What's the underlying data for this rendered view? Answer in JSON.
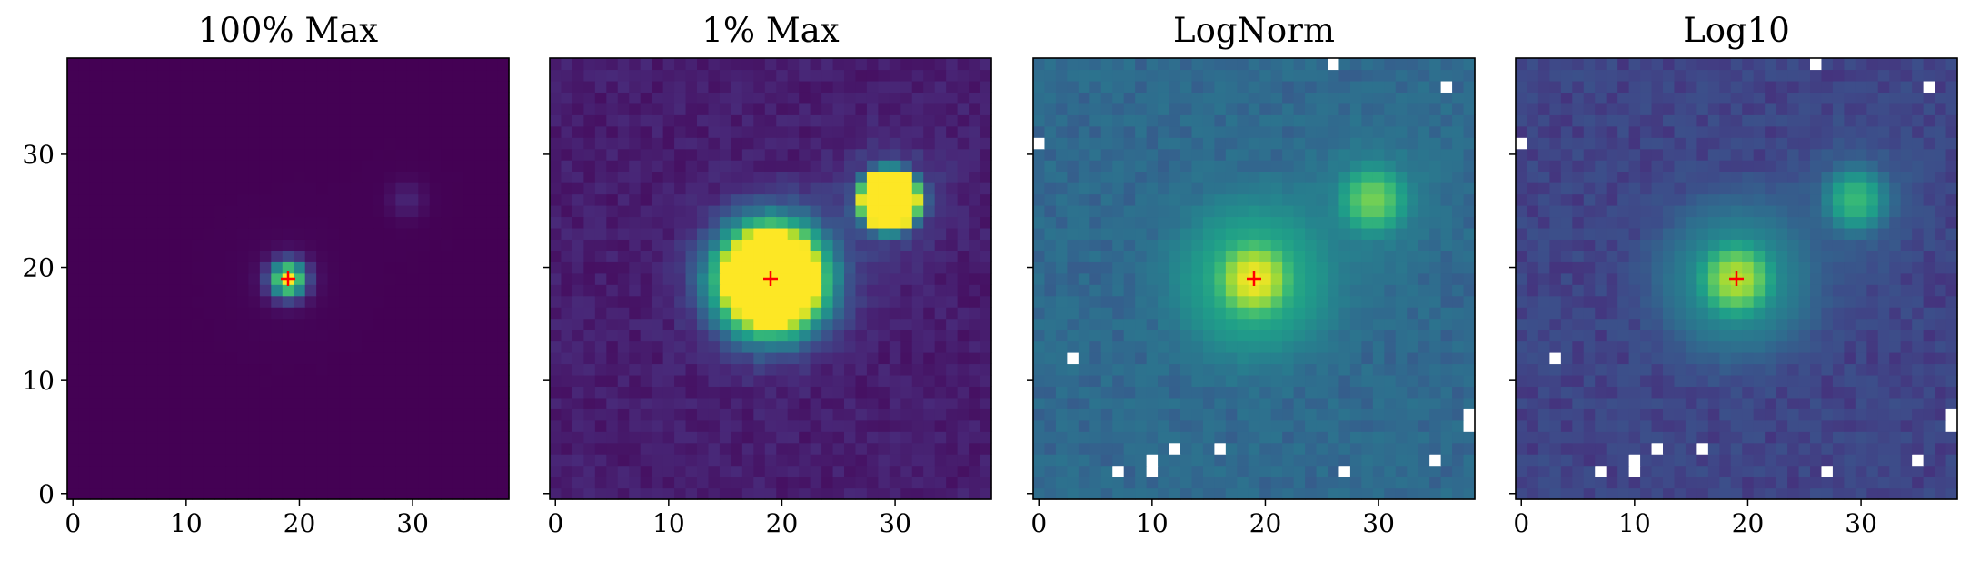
{
  "chart_data": [
    {
      "type": "heatmap",
      "title": "100% Max",
      "xlabel": "",
      "ylabel": "",
      "xlim": [
        -0.5,
        38.5
      ],
      "ylim": [
        -0.5,
        38.5
      ],
      "x_ticks": [
        "0",
        "10",
        "20",
        "30"
      ],
      "y_ticks": [
        "0",
        "10",
        "20",
        "30"
      ],
      "y_tick_labels_shown": true,
      "normalization": "linear, vmax = 100% of max",
      "colormap": "viridis",
      "grid": false,
      "marker": {
        "symbol": "+",
        "color": "#ff0000",
        "x": 19,
        "y": 19
      },
      "sources": [
        {
          "x": 19,
          "y": 19,
          "amp": 1.0
        },
        {
          "x": 29.5,
          "y": 26,
          "amp": 0.1
        }
      ],
      "masked_pixels": []
    },
    {
      "type": "heatmap",
      "title": "1% Max",
      "xlabel": "",
      "ylabel": "",
      "xlim": [
        -0.5,
        38.5
      ],
      "ylim": [
        -0.5,
        38.5
      ],
      "x_ticks": [
        "0",
        "10",
        "20",
        "30"
      ],
      "y_ticks": [],
      "y_tick_labels_shown": false,
      "normalization": "linear, vmax = 1% of max (saturated)",
      "colormap": "viridis",
      "grid": false,
      "marker": {
        "symbol": "+",
        "color": "#ff0000",
        "x": 19,
        "y": 19
      },
      "sources": [
        {
          "x": 19,
          "y": 19,
          "amp": 1.0
        },
        {
          "x": 29.5,
          "y": 26,
          "amp": 0.1
        }
      ],
      "masked_pixels": []
    },
    {
      "type": "heatmap",
      "title": "LogNorm",
      "xlabel": "",
      "ylabel": "",
      "xlim": [
        -0.5,
        38.5
      ],
      "ylim": [
        -0.5,
        38.5
      ],
      "x_ticks": [
        "0",
        "10",
        "20",
        "30"
      ],
      "y_ticks": [],
      "y_tick_labels_shown": false,
      "normalization": "log",
      "colormap": "viridis",
      "grid": false,
      "marker": {
        "symbol": "+",
        "color": "#ff0000",
        "x": 19,
        "y": 19
      },
      "sources": [
        {
          "x": 19,
          "y": 19,
          "amp": 1.0
        },
        {
          "x": 29.5,
          "y": 26,
          "amp": 0.1
        }
      ],
      "masked_pixels": [
        [
          3,
          12
        ],
        [
          7,
          2
        ],
        [
          10,
          2
        ],
        [
          10,
          3
        ],
        [
          12,
          4
        ],
        [
          16,
          4
        ],
        [
          27,
          2
        ],
        [
          35,
          3
        ],
        [
          38,
          6
        ],
        [
          38,
          7
        ],
        [
          0,
          31
        ],
        [
          26,
          38
        ],
        [
          36,
          36
        ]
      ]
    },
    {
      "type": "heatmap",
      "title": "Log10",
      "xlabel": "",
      "ylabel": "",
      "xlim": [
        -0.5,
        38.5
      ],
      "ylim": [
        -0.5,
        38.5
      ],
      "x_ticks": [
        "0",
        "10",
        "20",
        "30"
      ],
      "y_ticks": [],
      "y_tick_labels_shown": false,
      "normalization": "log10",
      "colormap": "viridis",
      "grid": false,
      "marker": {
        "symbol": "+",
        "color": "#ff0000",
        "x": 19,
        "y": 19
      },
      "sources": [
        {
          "x": 19,
          "y": 19,
          "amp": 1.0
        },
        {
          "x": 29.5,
          "y": 26,
          "amp": 0.1
        }
      ],
      "masked_pixels": [
        [
          3,
          12
        ],
        [
          7,
          2
        ],
        [
          10,
          2
        ],
        [
          10,
          3
        ],
        [
          12,
          4
        ],
        [
          16,
          4
        ],
        [
          27,
          2
        ],
        [
          35,
          3
        ],
        [
          38,
          6
        ],
        [
          38,
          7
        ],
        [
          0,
          31
        ],
        [
          26,
          38
        ],
        [
          36,
          36
        ]
      ]
    }
  ]
}
